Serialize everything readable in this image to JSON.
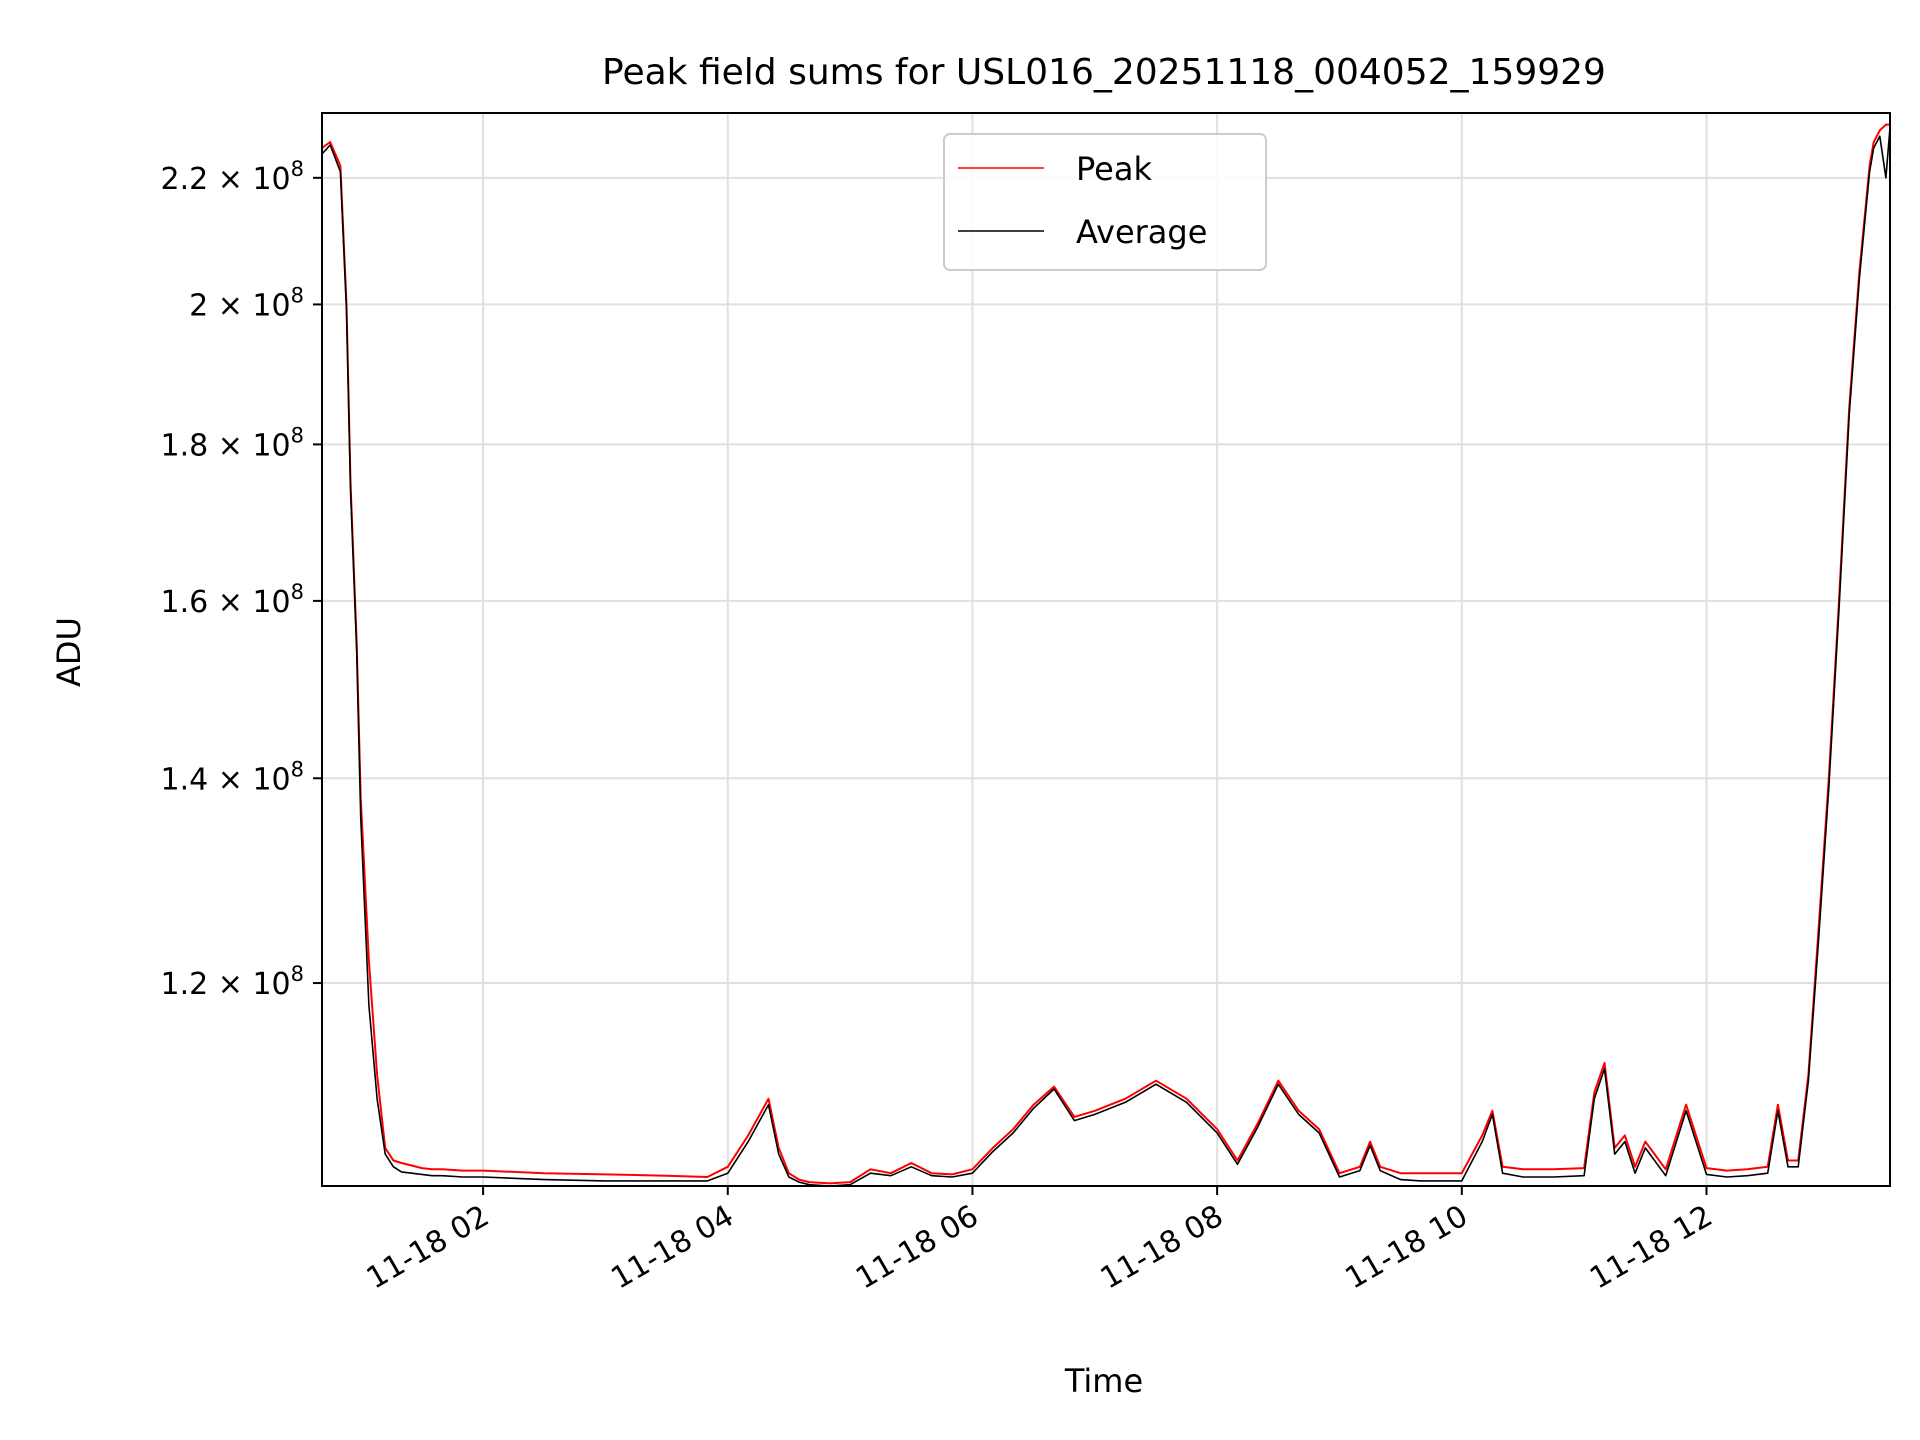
{
  "chart_data": {
    "type": "line",
    "title": "Peak field sums for USL016_20251118_004052_159929",
    "xlabel": "Time",
    "ylabel": "ADU",
    "x_range": [
      "2025-11-18 00:41",
      "2025-11-18 13:30"
    ],
    "ylim": [
      103000000,
      231000000
    ],
    "y_scale": "log",
    "grid": true,
    "legend_position": "upper center",
    "x_ticks": [
      "11-18 02",
      "11-18 04",
      "11-18 06",
      "11-18 08",
      "11-18 10",
      "11-18 12"
    ],
    "y_ticks": [
      {
        "value": 120000000,
        "mant": "1.2",
        "exp": "8"
      },
      {
        "value": 140000000,
        "mant": "1.4",
        "exp": "8"
      },
      {
        "value": 160000000,
        "mant": "1.6",
        "exp": "8"
      },
      {
        "value": 180000000,
        "mant": "1.8",
        "exp": "8"
      },
      {
        "value": 200000000,
        "mant": "2",
        "exp": "8"
      },
      {
        "value": 220000000,
        "mant": "2.2",
        "exp": "8"
      }
    ],
    "series": [
      {
        "name": "Peak",
        "color": "#ff0000",
        "x": [
          "00:41",
          "00:45",
          "00:50",
          "00:53",
          "00:55",
          "00:58",
          "01:00",
          "01:04",
          "01:08",
          "01:12",
          "01:16",
          "01:20",
          "01:25",
          "01:30",
          "01:35",
          "01:40",
          "01:50",
          "02:00",
          "02:15",
          "02:30",
          "03:00",
          "03:30",
          "03:50",
          "04:00",
          "04:10",
          "04:20",
          "04:25",
          "04:30",
          "04:35",
          "04:40",
          "04:50",
          "05:00",
          "05:10",
          "05:20",
          "05:30",
          "05:40",
          "05:50",
          "06:00",
          "06:10",
          "06:20",
          "06:30",
          "06:40",
          "06:50",
          "07:00",
          "07:15",
          "07:30",
          "07:45",
          "08:00",
          "08:10",
          "08:20",
          "08:30",
          "08:40",
          "08:50",
          "09:00",
          "09:10",
          "09:15",
          "09:20",
          "09:30",
          "09:40",
          "09:50",
          "10:00",
          "10:10",
          "10:15",
          "10:20",
          "10:30",
          "10:45",
          "11:00",
          "11:05",
          "11:10",
          "11:15",
          "11:20",
          "11:25",
          "11:30",
          "11:40",
          "11:50",
          "12:00",
          "12:10",
          "12:20",
          "12:30",
          "12:35",
          "12:40",
          "12:45",
          "12:50",
          "12:55",
          "13:00",
          "13:05",
          "13:10",
          "13:15",
          "13:18",
          "13:20",
          "13:22",
          "13:25",
          "13:28",
          "13:30"
        ],
        "y": [
          225000000,
          226000000,
          222000000,
          200000000,
          175000000,
          155000000,
          138000000,
          122000000,
          112000000,
          106000000,
          105000000,
          104800000,
          104600000,
          104400000,
          104300000,
          104300000,
          104200000,
          104200000,
          104100000,
          104000000,
          103900000,
          103800000,
          103700000,
          104500000,
          107000000,
          110000000,
          106000000,
          104000000,
          103500000,
          103300000,
          103200000,
          103300000,
          104300000,
          104000000,
          104800000,
          104000000,
          103900000,
          104300000,
          106000000,
          107500000,
          109500000,
          111000000,
          108500000,
          109000000,
          110000000,
          111500000,
          110000000,
          107500000,
          105000000,
          108000000,
          111500000,
          109000000,
          107500000,
          104000000,
          104500000,
          106500000,
          104500000,
          104000000,
          104000000,
          104000000,
          104000000,
          107000000,
          109000000,
          104500000,
          104300000,
          104300000,
          104400000,
          110500000,
          113000000,
          106000000,
          107000000,
          104500000,
          106500000,
          104300000,
          109500000,
          104400000,
          104200000,
          104300000,
          104500000,
          109500000,
          105000000,
          105000000,
          112000000,
          125000000,
          140000000,
          160000000,
          185000000,
          205000000,
          215000000,
          222000000,
          226000000,
          228000000,
          229000000,
          229000000
        ]
      },
      {
        "name": "Average",
        "color": "#000000",
        "x": [
          "00:41",
          "00:45",
          "00:50",
          "00:53",
          "00:55",
          "00:58",
          "01:00",
          "01:04",
          "01:08",
          "01:12",
          "01:16",
          "01:20",
          "01:25",
          "01:30",
          "01:35",
          "01:40",
          "01:50",
          "02:00",
          "02:15",
          "02:30",
          "03:00",
          "03:30",
          "03:50",
          "04:00",
          "04:10",
          "04:20",
          "04:25",
          "04:30",
          "04:35",
          "04:40",
          "04:50",
          "05:00",
          "05:10",
          "05:20",
          "05:30",
          "05:40",
          "05:50",
          "06:00",
          "06:10",
          "06:20",
          "06:30",
          "06:40",
          "06:50",
          "07:00",
          "07:15",
          "07:30",
          "07:45",
          "08:00",
          "08:10",
          "08:20",
          "08:30",
          "08:40",
          "08:50",
          "09:00",
          "09:10",
          "09:15",
          "09:20",
          "09:30",
          "09:40",
          "09:50",
          "10:00",
          "10:10",
          "10:15",
          "10:20",
          "10:30",
          "10:45",
          "11:00",
          "11:05",
          "11:10",
          "11:15",
          "11:20",
          "11:25",
          "11:30",
          "11:40",
          "11:50",
          "12:00",
          "12:10",
          "12:20",
          "12:30",
          "12:35",
          "12:40",
          "12:45",
          "12:50",
          "12:55",
          "13:00",
          "13:05",
          "13:10",
          "13:15",
          "13:18",
          "13:20",
          "13:22",
          "13:25",
          "13:28",
          "13:30"
        ],
        "y": [
          224000000,
          225500000,
          221000000,
          199000000,
          174000000,
          154000000,
          136000000,
          118000000,
          110000000,
          105500000,
          104500000,
          104100000,
          104000000,
          103900000,
          103800000,
          103800000,
          103700000,
          103700000,
          103600000,
          103500000,
          103400000,
          103400000,
          103400000,
          104000000,
          106500000,
          109500000,
          105500000,
          103700000,
          103300000,
          103100000,
          103000000,
          103100000,
          104000000,
          103800000,
          104500000,
          103800000,
          103700000,
          104000000,
          105700000,
          107200000,
          109200000,
          110800000,
          108200000,
          108700000,
          109700000,
          111200000,
          109700000,
          107200000,
          104700000,
          107700000,
          111200000,
          108700000,
          107200000,
          103700000,
          104200000,
          106200000,
          104200000,
          103500000,
          103400000,
          103400000,
          103400000,
          106500000,
          108700000,
          104000000,
          103700000,
          103700000,
          103800000,
          110000000,
          112500000,
          105500000,
          106500000,
          104000000,
          106000000,
          103800000,
          109000000,
          103900000,
          103700000,
          103800000,
          104000000,
          109000000,
          104500000,
          104500000,
          111500000,
          124000000,
          139000000,
          159000000,
          184000000,
          204000000,
          214000000,
          221000000,
          225000000,
          227000000,
          220000000,
          228500000
        ]
      }
    ]
  }
}
